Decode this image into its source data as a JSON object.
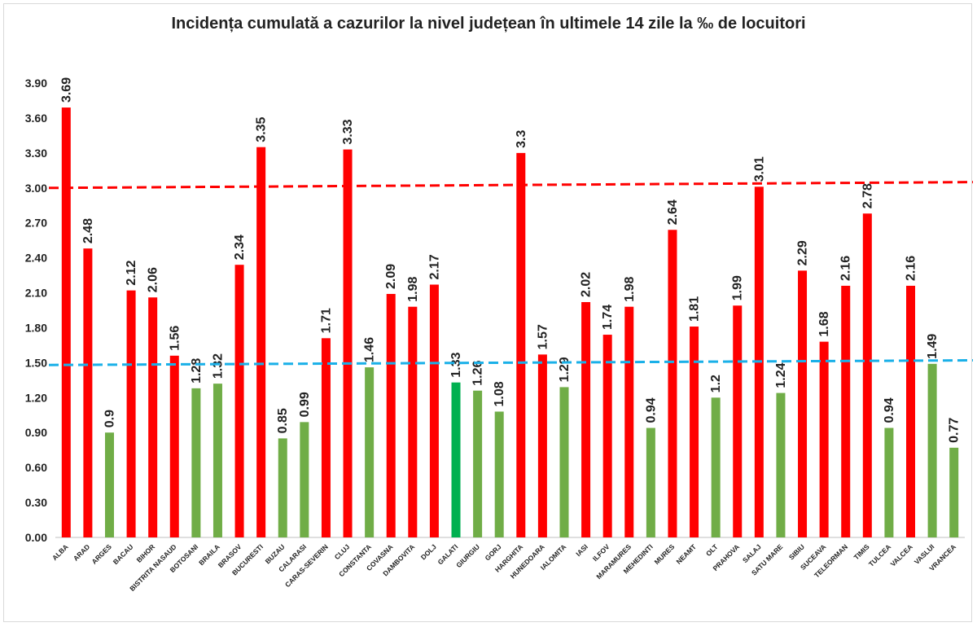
{
  "chart_data": {
    "type": "bar",
    "title": "Incidența cumulată a cazurilor la nivel județean în ultimele 14 zile la ‰ de locuitori",
    "xlabel": "",
    "ylabel": "",
    "ylim": [
      0,
      3.9
    ],
    "yticks": [
      "0.00",
      "0.30",
      "0.60",
      "0.90",
      "1.20",
      "1.50",
      "1.80",
      "2.10",
      "2.40",
      "2.70",
      "3.00",
      "3.30",
      "3.60",
      "3.90"
    ],
    "categories": [
      "ALBA",
      "ARAD",
      "ARGES",
      "BACAU",
      "BIHOR",
      "BISTRITA NASAUD",
      "BOTOSANI",
      "BRAILA",
      "BRASOV",
      "BUCURESTI",
      "BUZAU",
      "CALARASI",
      "CARAS-SEVERIN",
      "CLUJ",
      "CONSTANTA",
      "COVASNA",
      "DAMBOVITA",
      "DOLJ",
      "GALATI",
      "GIURGIU",
      "GORJ",
      "HARGHITA",
      "HUNEDOARA",
      "IALOMITA",
      "IASI",
      "ILFOV",
      "MARAMURES",
      "MEHEDINTI",
      "MURES",
      "NEAMT",
      "OLT",
      "PRAHOVA",
      "SALAJ",
      "SATU MARE",
      "SIBIU",
      "SUCEAVA",
      "TELEORMAN",
      "TIMIS",
      "TULCEA",
      "VALCEA",
      "VASLUI",
      "VRANCEA"
    ],
    "values": [
      3.69,
      2.48,
      0.9,
      2.12,
      2.06,
      1.56,
      1.28,
      1.32,
      2.34,
      3.35,
      0.85,
      0.99,
      1.71,
      3.33,
      1.46,
      2.09,
      1.98,
      2.17,
      1.33,
      1.26,
      1.08,
      3.3,
      1.57,
      1.29,
      2.02,
      1.74,
      1.98,
      0.94,
      2.64,
      1.81,
      1.2,
      1.99,
      3.01,
      1.24,
      2.29,
      1.68,
      2.16,
      2.78,
      0.94,
      2.16,
      1.49,
      0.77
    ],
    "value_labels": [
      "3.69",
      "2.48",
      "0.9",
      "2.12",
      "2.06",
      "1.56",
      "1.28",
      "1.32",
      "2.34",
      "3.35",
      "0.85",
      "0.99",
      "1.71",
      "3.33",
      "1.46",
      "2.09",
      "1.98",
      "2.17",
      "1.33",
      "1.26",
      "1.08",
      "3.3",
      "1.57",
      "1.29",
      "2.02",
      "1.74",
      "1.98",
      "0.94",
      "2.64",
      "1.81",
      "1.2",
      "1.99",
      "3.01",
      "1.24",
      "2.29",
      "1.68",
      "2.16",
      "2.78",
      "0.94",
      "2.16",
      "1.49",
      "0.77"
    ],
    "bar_colors": [
      "#ff0000",
      "#ff0000",
      "#70ad47",
      "#ff0000",
      "#ff0000",
      "#ff0000",
      "#70ad47",
      "#70ad47",
      "#ff0000",
      "#ff0000",
      "#70ad47",
      "#70ad47",
      "#ff0000",
      "#ff0000",
      "#70ad47",
      "#ff0000",
      "#ff0000",
      "#ff0000",
      "#00b050",
      "#70ad47",
      "#70ad47",
      "#ff0000",
      "#ff0000",
      "#70ad47",
      "#ff0000",
      "#ff0000",
      "#ff0000",
      "#70ad47",
      "#ff0000",
      "#ff0000",
      "#70ad47",
      "#ff0000",
      "#ff0000",
      "#70ad47",
      "#ff0000",
      "#ff0000",
      "#ff0000",
      "#ff0000",
      "#70ad47",
      "#ff0000",
      "#70ad47",
      "#70ad47"
    ],
    "reference_lines": [
      {
        "color": "#ff0000",
        "style": "dashed",
        "from": 3.0,
        "to": 3.05
      },
      {
        "color": "#1ab0e8",
        "style": "dashed",
        "from": 1.48,
        "to": 1.52
      }
    ],
    "grid": false,
    "legend": "none"
  }
}
